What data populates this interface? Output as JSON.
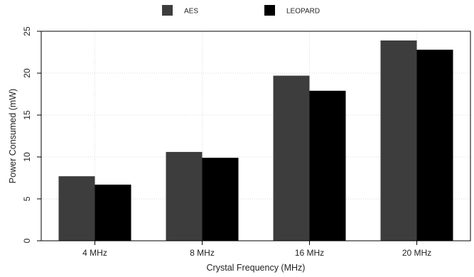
{
  "chart_data": {
    "type": "bar",
    "title": "",
    "xlabel": "Crystal Frequency (MHz)",
    "ylabel": "Power Consumed (mW)",
    "categories": [
      "4 MHz",
      "8 MHz",
      "16 MHz",
      "20 MHz"
    ],
    "series": [
      {
        "name": "AES",
        "values": [
          7.7,
          10.6,
          19.7,
          23.9
        ],
        "color": "#3d3d3d"
      },
      {
        "name": "LEOPARD",
        "values": [
          6.7,
          9.9,
          17.9,
          22.8
        ],
        "color": "#000000"
      }
    ],
    "ylim": [
      0,
      25
    ],
    "yticks": [
      "0",
      "5",
      "10",
      "15",
      "20",
      "25"
    ],
    "grid": true,
    "legend_position": "top-center",
    "colors": {
      "grid": "#d9d9d9",
      "axis": "#000000",
      "frame": "#000000"
    }
  }
}
